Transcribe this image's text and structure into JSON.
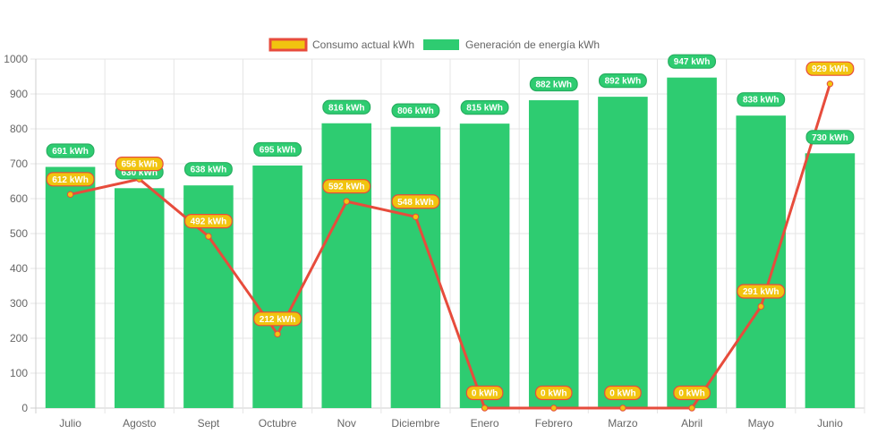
{
  "chart_data": {
    "type": "bar",
    "title": "",
    "xlabel": "",
    "ylabel": "",
    "categories": [
      "Julio",
      "Agosto",
      "Sept",
      "Octubre",
      "Nov",
      "Diciembre",
      "Enero",
      "Febrero",
      "Marzo",
      "Abril",
      "Mayo",
      "Junio"
    ],
    "ylim": [
      0,
      1000
    ],
    "yticks": [
      0,
      100,
      200,
      300,
      400,
      500,
      600,
      700,
      800,
      900,
      1000
    ],
    "grid": true,
    "legend_position": "top-center",
    "unit_suffix": " kWh",
    "series": [
      {
        "name": "Consumo actual kWh",
        "type": "line",
        "color": "#e74c3c",
        "fill_color": "#f1c40f",
        "values": [
          612,
          656,
          492,
          212,
          592,
          548,
          0,
          0,
          0,
          0,
          291,
          929
        ]
      },
      {
        "name": "Generación de energía kWh",
        "type": "bar",
        "color": "#2ecc71",
        "values": [
          691,
          630,
          638,
          695,
          816,
          806,
          815,
          882,
          892,
          947,
          838,
          730
        ]
      }
    ]
  }
}
